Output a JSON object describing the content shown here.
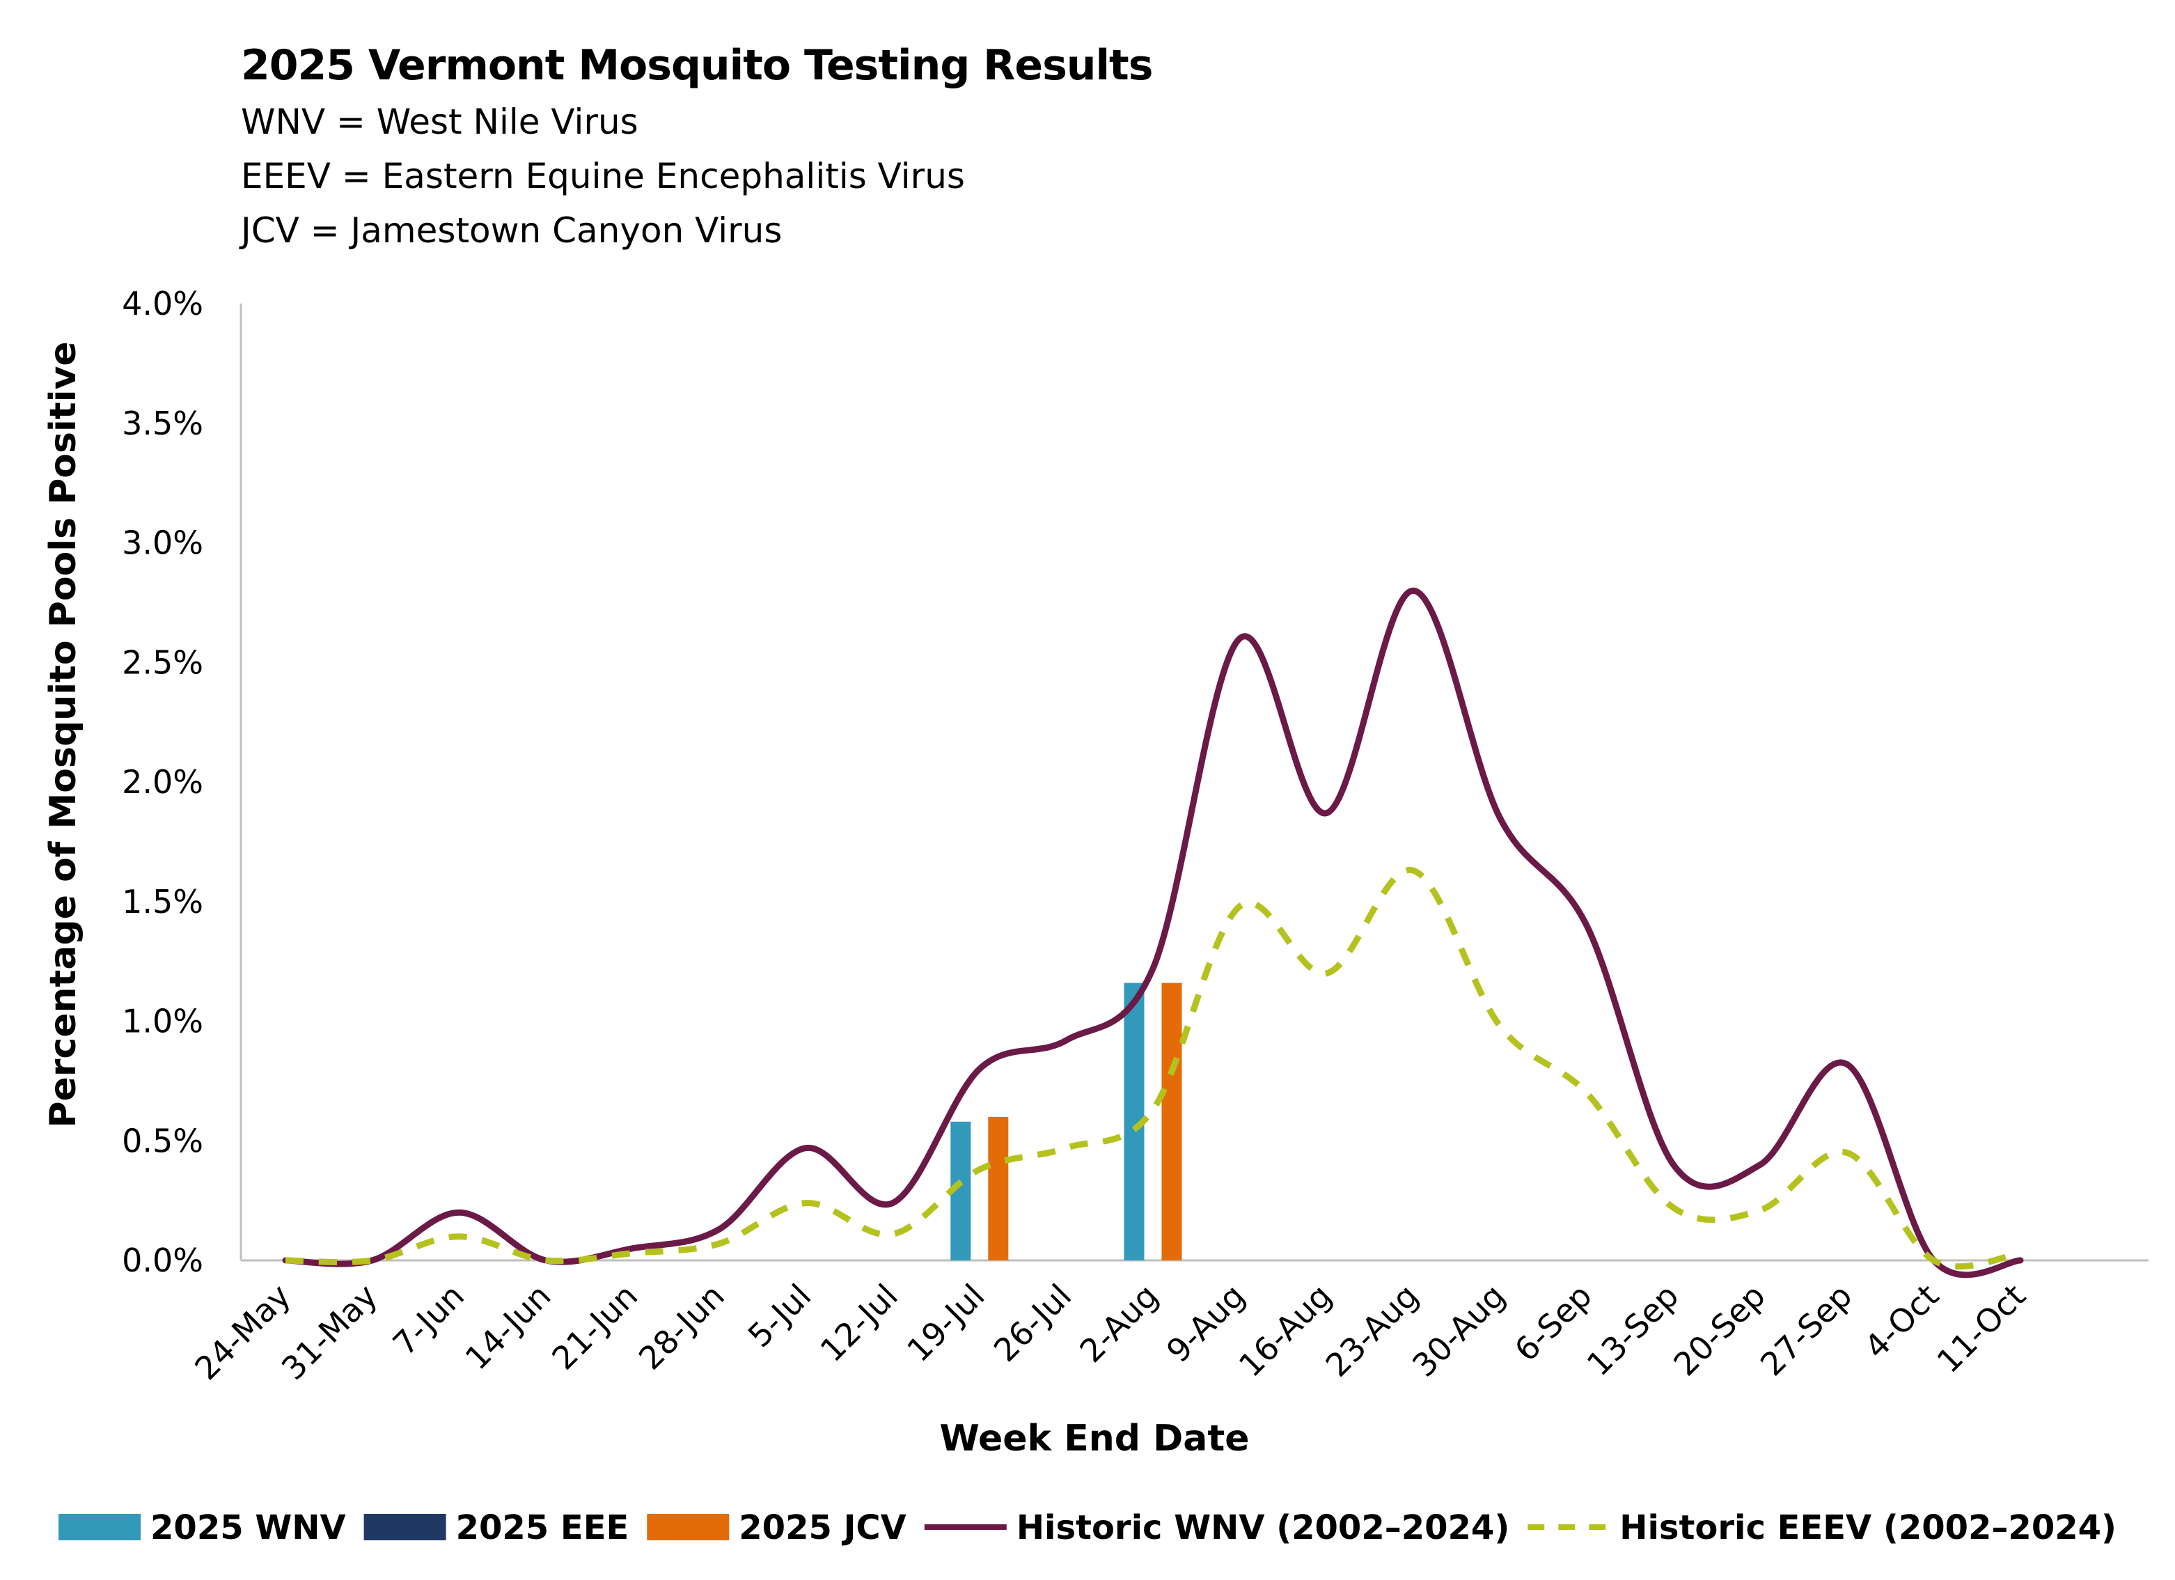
{
  "title": "2025 Vermont Mosquito Testing Results",
  "subtitle_lines": [
    "WNV = West Nile Virus",
    "EEEV = Eastern Equine Encephalitis Virus",
    "JCV = Jamestown Canyon Virus"
  ],
  "chart_data": {
    "type": "bar",
    "xlabel": "Week End Date",
    "ylabel": "Percentage of Mosquito Pools Positive",
    "ylim": [
      0,
      4.0
    ],
    "yticks": [
      0.0,
      0.5,
      1.0,
      1.5,
      2.0,
      2.5,
      3.0,
      3.5,
      4.0
    ],
    "ytick_labels": [
      "0.0%",
      "0.5%",
      "1.0%",
      "1.5%",
      "2.0%",
      "2.5%",
      "3.0%",
      "3.5%",
      "4.0%"
    ],
    "grid": false,
    "legend_position": "bottom",
    "categories": [
      "24-May",
      "31-May",
      "7-Jun",
      "14-Jun",
      "21-Jun",
      "28-Jun",
      "5-Jul",
      "12-Jul",
      "19-Jul",
      "26-Jul",
      "2-Aug",
      "9-Aug",
      "16-Aug",
      "23-Aug",
      "30-Aug",
      "6-Sep",
      "13-Sep",
      "20-Sep",
      "27-Sep",
      "4-Oct",
      "11-Oct"
    ],
    "series": [
      {
        "name": "2025 WNV",
        "kind": "bar",
        "color": "#3399BB",
        "values": [
          0,
          0,
          0,
          0,
          0,
          0,
          0,
          0,
          0.58,
          0,
          1.16,
          0,
          0,
          0,
          0,
          0,
          0,
          0,
          0,
          0,
          0
        ]
      },
      {
        "name": "2025 EEE",
        "kind": "bar",
        "color": "#1F3864",
        "values": [
          0,
          0,
          0,
          0,
          0,
          0,
          0,
          0,
          0,
          0,
          0,
          0,
          0,
          0,
          0,
          0,
          0,
          0,
          0,
          0,
          0
        ]
      },
      {
        "name": "2025 JCV",
        "kind": "bar",
        "color": "#E36C09",
        "values": [
          0,
          0,
          0,
          0,
          0,
          0,
          0,
          0,
          0.6,
          0,
          1.16,
          0,
          0,
          0,
          0,
          0,
          0,
          0,
          0,
          0,
          0
        ]
      },
      {
        "name": "Historic WNV (2002–2024)",
        "kind": "line",
        "style": "solid",
        "color": "#6B1A48",
        "values": [
          0.0,
          0.0,
          0.2,
          0.0,
          0.05,
          0.13,
          0.47,
          0.24,
          0.8,
          0.92,
          1.22,
          2.6,
          1.87,
          2.8,
          1.85,
          1.4,
          0.4,
          0.4,
          0.82,
          0.0,
          0.0
        ]
      },
      {
        "name": "Historic EEEV (2002–2024)",
        "kind": "line",
        "style": "dashed",
        "color": "#B5C21E",
        "values": [
          0.0,
          0.0,
          0.1,
          0.0,
          0.03,
          0.07,
          0.24,
          0.11,
          0.38,
          0.47,
          0.63,
          1.48,
          1.2,
          1.63,
          0.98,
          0.7,
          0.22,
          0.21,
          0.45,
          0.0,
          0.03
        ]
      }
    ]
  }
}
